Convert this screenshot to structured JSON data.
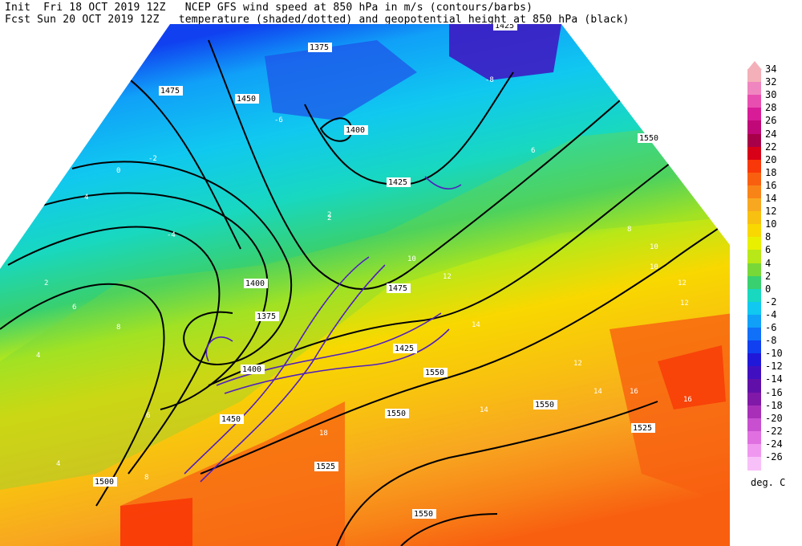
{
  "header": {
    "line1": "Init  Fri 18 OCT 2019 12Z   NCEP GFS wind speed at 850 hPa in m/s (contours/barbs)",
    "line2": "Fcst Sun 20 OCT 2019 12Z   temperature (shaded/dotted) and geopotential height at 850 hPa (black)"
  },
  "legend": {
    "units": "deg. C",
    "levels": [
      {
        "label": "34",
        "color": "#f4b0b8"
      },
      {
        "label": "32",
        "color": "#f086c0"
      },
      {
        "label": "30",
        "color": "#e84eb0"
      },
      {
        "label": "28",
        "color": "#d81c98"
      },
      {
        "label": "26",
        "color": "#c00878"
      },
      {
        "label": "24",
        "color": "#a80048"
      },
      {
        "label": "22",
        "color": "#d80018"
      },
      {
        "label": "20",
        "color": "#f83808"
      },
      {
        "label": "18",
        "color": "#f86010"
      },
      {
        "label": "16",
        "color": "#f88418"
      },
      {
        "label": "14",
        "color": "#f8a820"
      },
      {
        "label": "12",
        "color": "#f8c010"
      },
      {
        "label": "10",
        "color": "#f8d800"
      },
      {
        "label": "8",
        "color": "#e8f000"
      },
      {
        "label": "6",
        "color": "#b8e818"
      },
      {
        "label": "4",
        "color": "#78d838"
      },
      {
        "label": "2",
        "color": "#38d070"
      },
      {
        "label": "0",
        "color": "#18d8c0"
      },
      {
        "label": "-2",
        "color": "#10c8f0"
      },
      {
        "label": "-4",
        "color": "#10a0f8"
      },
      {
        "label": "-6",
        "color": "#1070f8"
      },
      {
        "label": "-8",
        "color": "#1040f0"
      },
      {
        "label": "-10",
        "color": "#2018d8"
      },
      {
        "label": "-12",
        "color": "#4010c0"
      },
      {
        "label": "-14",
        "color": "#6010a8"
      },
      {
        "label": "-16",
        "color": "#8018a8"
      },
      {
        "label": "-18",
        "color": "#a830b8"
      },
      {
        "label": "-20",
        "color": "#c850d0"
      },
      {
        "label": "-22",
        "color": "#e070e0"
      },
      {
        "label": "-24",
        "color": "#f098f0"
      },
      {
        "label": "-26",
        "color": "#f8c0f8"
      }
    ]
  },
  "map": {
    "height_labels": [
      "1425",
      "1375",
      "1475",
      "1450",
      "1400",
      "1425",
      "1550",
      "1475",
      "1400",
      "1375",
      "1425",
      "1550",
      "1400",
      "1450",
      "1550",
      "1550",
      "1525",
      "1525",
      "1500",
      "1550"
    ],
    "temp_labels": [
      "-8",
      "-6",
      "-2",
      "0",
      "2",
      "4",
      "6",
      "8",
      "10",
      "12",
      "14",
      "16",
      "-4",
      "2",
      "6",
      "8",
      "10",
      "12",
      "12",
      "14",
      "14",
      "16",
      "18",
      "2",
      "4",
      "6",
      "4",
      "8",
      "10",
      "12"
    ]
  }
}
